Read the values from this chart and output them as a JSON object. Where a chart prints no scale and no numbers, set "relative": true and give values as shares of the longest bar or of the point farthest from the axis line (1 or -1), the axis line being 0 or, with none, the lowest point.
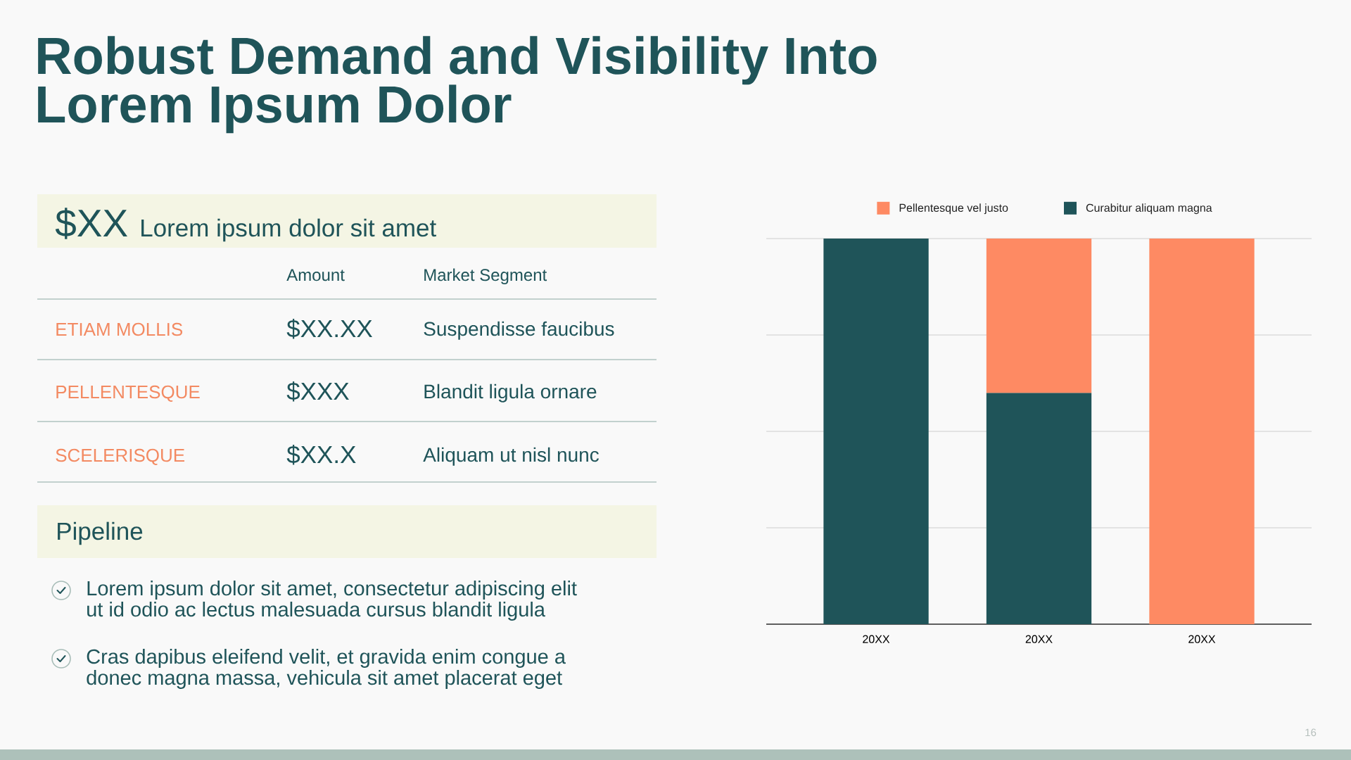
{
  "chart_data": [
    {
      "type": "other",
      "title": "Robust Demand and Visibility Into Lorem Ipsum Dolor",
      "annotations": [
        "$XX",
        "Lorem ipsum dolor sit amet",
        "Amount",
        "Market Segment",
        "ETIAM MOLLIS",
        "$XX.XX",
        "Suspendisse faucibus",
        "PELLENTESQUE",
        "$XXX",
        "Blandit ligula ornare",
        "SCELERISQUE",
        "$XX.X",
        "Aliquam ut nisl nunc",
        "Pipeline",
        "Lorem ipsum dolor sit amet, consectetur adipiscing elit ut id odio ac lectus malesuada cursus blandit ligula",
        "Cras dapibus eleifend velit, et gravida enim congue a donec magna massa, vehicula sit amet placerat eget",
        "16"
      ]
    },
    {
      "type": "bar",
      "stacked": true,
      "relative": true,
      "categories": [
        "20XX",
        "20XX",
        "20XX"
      ],
      "series": [
        {
          "name": "Curabitur aliquam magna",
          "color": "#1f5459",
          "values": [
            1,
            0.6,
            null
          ]
        },
        {
          "name": "Pellentesque vel justo",
          "color": "#fe8a63",
          "values": [
            null,
            0.4,
            1
          ]
        }
      ],
      "legend": "top",
      "grid": "y"
    }
  ]
}
